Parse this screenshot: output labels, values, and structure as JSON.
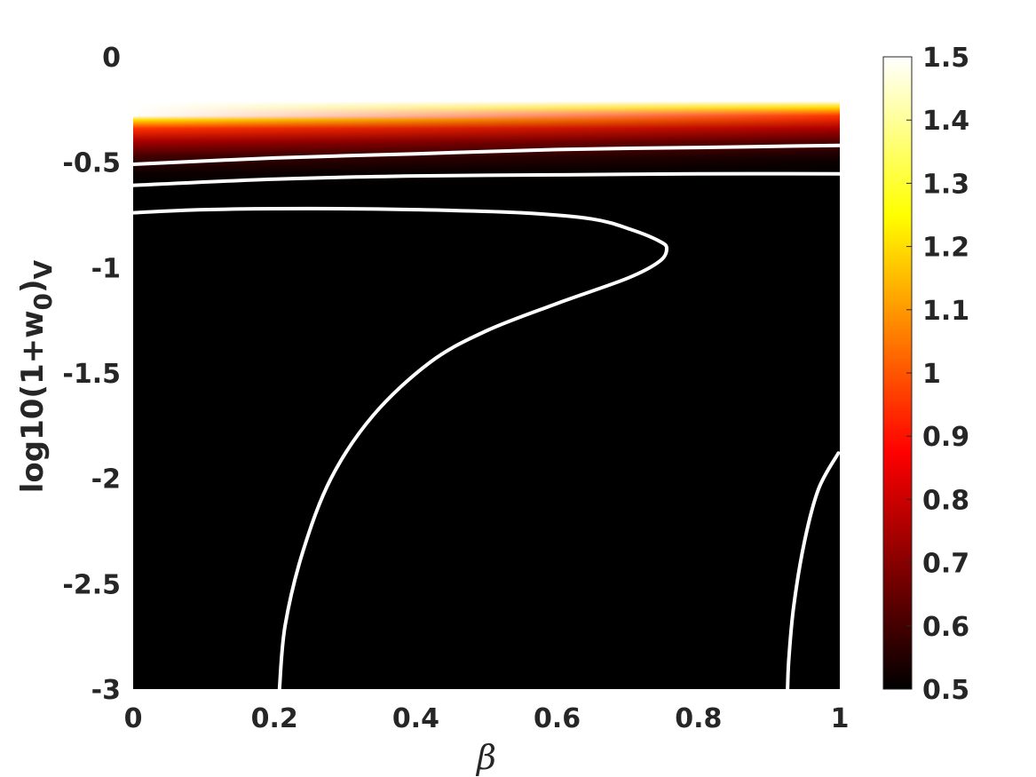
{
  "chart_data": {
    "type": "heatmap",
    "xlabel": "β",
    "ylabel": {
      "main": "log10(1+w",
      "sub0": "0",
      "close": ")",
      "sub1": "V"
    },
    "xlim": [
      0,
      1
    ],
    "ylim": [
      -3,
      0
    ],
    "x_ticks": [
      0,
      0.2,
      0.4,
      0.6,
      0.8,
      1
    ],
    "x_tick_labels": [
      "0",
      "0.2",
      "0.4",
      "0.6",
      "0.8",
      "1"
    ],
    "y_ticks": [
      0,
      -0.5,
      -1,
      -1.5,
      -2,
      -2.5,
      -3
    ],
    "y_tick_labels": [
      "0",
      "-0.5",
      "-1",
      "-1.5",
      "-2",
      "-2.5",
      "-3"
    ],
    "colorbar": {
      "colormap": "hot",
      "range": [
        0.5,
        1.5
      ],
      "ticks": [
        0.5,
        0.6,
        0.7,
        0.8,
        0.9,
        1,
        1.1,
        1.2,
        1.3,
        1.4,
        1.5
      ],
      "tick_labels": [
        "0.5",
        "0.6",
        "0.7",
        "0.8",
        "0.9",
        "1",
        "1.1",
        "1.2",
        "1.3",
        "1.4",
        "1.5"
      ]
    },
    "field": {
      "description_of_values": "value along log10(1+w0) at beta=0 and beta=1",
      "profile_beta0": [
        [
          -0.28,
          1.5
        ],
        [
          -0.3,
          1.2
        ],
        [
          -0.34,
          0.95
        ],
        [
          -0.4,
          0.75
        ],
        [
          -0.47,
          0.6
        ],
        [
          -0.55,
          0.52
        ],
        [
          -0.62,
          0.5
        ]
      ],
      "profile_beta1": [
        [
          -0.21,
          1.5
        ],
        [
          -0.24,
          1.2
        ],
        [
          -0.28,
          0.95
        ],
        [
          -0.34,
          0.75
        ],
        [
          -0.41,
          0.6
        ],
        [
          -0.49,
          0.52
        ],
        [
          -0.56,
          0.5
        ]
      ],
      "low_region_value": 0.5
    },
    "contours": [
      {
        "points": [
          [
            0,
            -0.51
          ],
          [
            0.2,
            -0.48
          ],
          [
            0.4,
            -0.46
          ],
          [
            0.6,
            -0.44
          ],
          [
            0.8,
            -0.43
          ],
          [
            1,
            -0.42
          ]
        ]
      },
      {
        "points": [
          [
            0,
            -0.61
          ],
          [
            0.2,
            -0.58
          ],
          [
            0.4,
            -0.565
          ],
          [
            0.6,
            -0.56
          ],
          [
            0.8,
            -0.555
          ],
          [
            1,
            -0.555
          ]
        ]
      },
      {
        "points": [
          [
            0,
            -0.74
          ],
          [
            0.1,
            -0.725
          ],
          [
            0.25,
            -0.72
          ],
          [
            0.4,
            -0.725
          ],
          [
            0.55,
            -0.74
          ],
          [
            0.65,
            -0.77
          ],
          [
            0.705,
            -0.82
          ],
          [
            0.745,
            -0.875
          ],
          [
            0.755,
            -0.91
          ],
          [
            0.745,
            -0.97
          ],
          [
            0.7,
            -1.05
          ],
          [
            0.6,
            -1.17
          ],
          [
            0.5,
            -1.3
          ],
          [
            0.42,
            -1.45
          ],
          [
            0.34,
            -1.7
          ],
          [
            0.28,
            -2.0
          ],
          [
            0.24,
            -2.35
          ],
          [
            0.215,
            -2.7
          ],
          [
            0.207,
            -3.0
          ]
        ]
      },
      {
        "points": [
          [
            0.998,
            -1.88
          ],
          [
            0.97,
            -2.05
          ],
          [
            0.95,
            -2.3
          ],
          [
            0.935,
            -2.6
          ],
          [
            0.928,
            -2.85
          ],
          [
            0.926,
            -3.0
          ]
        ]
      }
    ]
  }
}
